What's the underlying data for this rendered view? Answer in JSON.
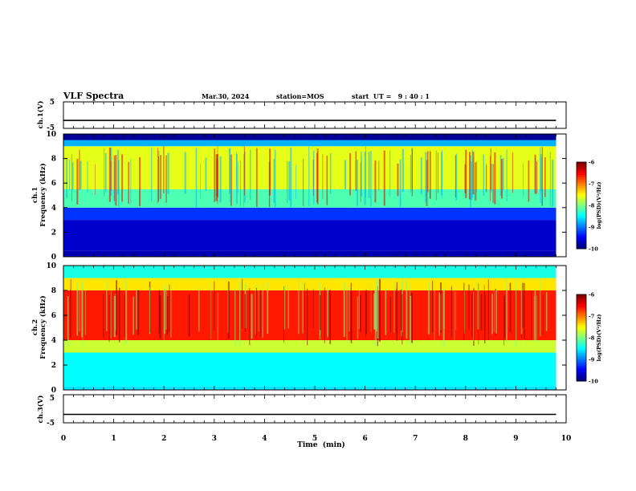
{
  "header": {
    "title": "VLF Spectra",
    "date": "Mar.30, 2024",
    "station": "station=MOS",
    "start": "start  UT =   9 : 40 : 1"
  },
  "chart_data": [
    {
      "type": "line",
      "panel": "ch1-voltage",
      "ylabel": "ch.1(V)",
      "ylim": [
        -5,
        5
      ],
      "ytick_labels": [
        "5",
        "-5"
      ],
      "x": [
        0,
        9.8
      ],
      "series": [
        {
          "values": [
            -2,
            -2
          ]
        }
      ]
    },
    {
      "type": "heatmap",
      "panel": "ch1-spectrogram",
      "ylabel_line1": "ch.1",
      "ylabel_line2": "Frequency (kHz)",
      "ylim": [
        0,
        10
      ],
      "ytick_labels": [
        "0",
        "2",
        "4",
        "6",
        "8",
        "10"
      ],
      "data_xrange": [
        0,
        9.8
      ],
      "colorbar": {
        "label": "log(PSD)(V²/Hz)",
        "range": [
          -10,
          -6
        ],
        "tick_labels": [
          "-6",
          "-7",
          "-8",
          "-9",
          "-10"
        ]
      },
      "bands": [
        {
          "fmin": 0,
          "fmax": 0.5,
          "level": -9.8
        },
        {
          "fmin": 0.5,
          "fmax": 3.0,
          "level": -9.7
        },
        {
          "fmin": 3.0,
          "fmax": 4.0,
          "level": -9.3
        },
        {
          "fmin": 4.0,
          "fmax": 5.5,
          "level": -8.2
        },
        {
          "fmin": 5.5,
          "fmax": 9.0,
          "level": -7.6
        },
        {
          "fmin": 9.0,
          "fmax": 9.5,
          "level": -8.8
        },
        {
          "fmin": 9.5,
          "fmax": 10,
          "level": -9.9
        }
      ]
    },
    {
      "type": "heatmap",
      "panel": "ch2-spectrogram",
      "ylabel_line1": "ch.2",
      "ylabel_line2": "Frequency (kHz)",
      "ylim": [
        0,
        10
      ],
      "ytick_labels": [
        "0",
        "2",
        "4",
        "6",
        "8",
        "10"
      ],
      "data_xrange": [
        0,
        9.8
      ],
      "colorbar": {
        "label": "log(PSD)(V²/Hz)",
        "range": [
          -10,
          -6
        ],
        "tick_labels": [
          "-6",
          "-7",
          "-8",
          "-9",
          "-10"
        ]
      },
      "bands": [
        {
          "fmin": 0,
          "fmax": 0.3,
          "level": -8.6
        },
        {
          "fmin": 0.3,
          "fmax": 3.0,
          "level": -8.5
        },
        {
          "fmin": 3.0,
          "fmax": 4.0,
          "level": -7.7
        },
        {
          "fmin": 4.0,
          "fmax": 8.0,
          "level": -6.6
        },
        {
          "fmin": 8.0,
          "fmax": 9.0,
          "level": -7.4
        },
        {
          "fmin": 9.0,
          "fmax": 10,
          "level": -8.4
        }
      ]
    },
    {
      "type": "line",
      "panel": "ch3-voltage",
      "ylabel": "ch.3(V)",
      "ylim": [
        -5,
        5
      ],
      "ytick_labels": [
        "5",
        "-5"
      ],
      "x": [
        0,
        9.8
      ],
      "series": [
        {
          "values": [
            -2,
            -2
          ]
        }
      ]
    }
  ],
  "xaxis": {
    "label": "Time  (min)",
    "xlim": [
      0,
      10
    ],
    "tick_labels": [
      "0",
      "1",
      "2",
      "3",
      "4",
      "5",
      "6",
      "7",
      "8",
      "9",
      "10"
    ]
  }
}
